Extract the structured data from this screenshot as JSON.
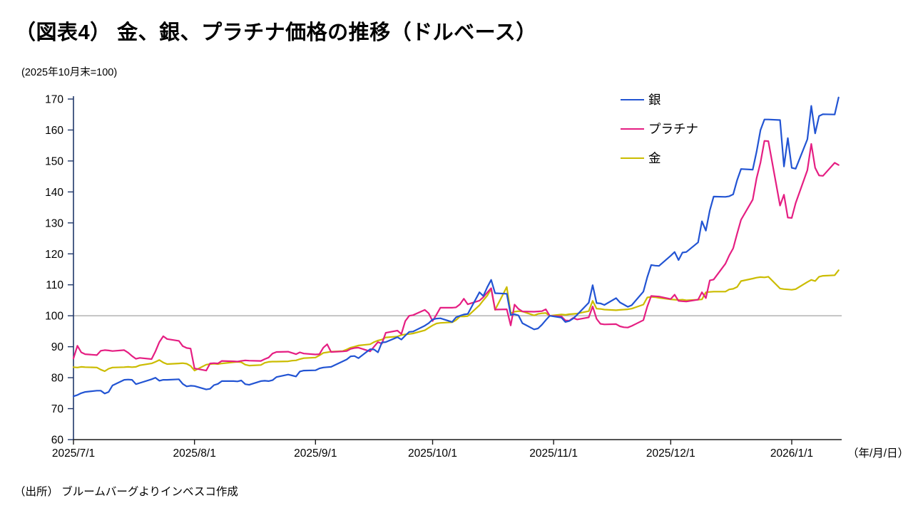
{
  "page": {
    "title": "（図表4） 金、銀、プラチナ価格の推移（ドルベース）",
    "index_note": "(2025年10月末=100)",
    "axis_unit": "（年/月/日）",
    "source": "（出所） ブルームバーグよりインベスコ作成"
  },
  "chart_data": {
    "type": "line",
    "title": "（図表4） 金、銀、プラチナ価格の推移（ドルベース）",
    "subtitle": "(2025年10月末=100)",
    "xlabel": "（年/月/日）",
    "ylabel": "",
    "ylim": [
      60,
      170
    ],
    "yticks": [
      60,
      70,
      80,
      90,
      100,
      110,
      120,
      130,
      140,
      150,
      160,
      170
    ],
    "baseline": 100,
    "grid": "baseline-only",
    "legend_position": "top-right",
    "month_ticks": [
      "2025/7/1",
      "2025/8/1",
      "2025/9/1",
      "2025/10/1",
      "2025/11/1",
      "2025/12/1",
      "2026/1/1"
    ],
    "x_dates": [
      "2025/7/1",
      "2025/7/2",
      "2025/7/3",
      "2025/7/4",
      "2025/7/7",
      "2025/7/8",
      "2025/7/9",
      "2025/7/10",
      "2025/7/11",
      "2025/7/14",
      "2025/7/15",
      "2025/7/16",
      "2025/7/17",
      "2025/7/18",
      "2025/7/21",
      "2025/7/22",
      "2025/7/23",
      "2025/7/24",
      "2025/7/25",
      "2025/7/28",
      "2025/7/29",
      "2025/7/30",
      "2025/7/31",
      "2025/8/1",
      "2025/8/4",
      "2025/8/5",
      "2025/8/6",
      "2025/8/7",
      "2025/8/8",
      "2025/8/11",
      "2025/8/12",
      "2025/8/13",
      "2025/8/14",
      "2025/8/15",
      "2025/8/18",
      "2025/8/19",
      "2025/8/20",
      "2025/8/21",
      "2025/8/22",
      "2025/8/25",
      "2025/8/26",
      "2025/8/27",
      "2025/8/28",
      "2025/8/29",
      "2025/9/1",
      "2025/9/2",
      "2025/9/3",
      "2025/9/4",
      "2025/9/5",
      "2025/9/8",
      "2025/9/9",
      "2025/9/10",
      "2025/9/11",
      "2025/9/12",
      "2025/9/15",
      "2025/9/16",
      "2025/9/17",
      "2025/9/18",
      "2025/9/19",
      "2025/9/22",
      "2025/9/23",
      "2025/9/24",
      "2025/9/25",
      "2025/9/26",
      "2025/9/29",
      "2025/9/30",
      "2025/10/1",
      "2025/10/2",
      "2025/10/3",
      "2025/10/6",
      "2025/10/7",
      "2025/10/8",
      "2025/10/9",
      "2025/10/10",
      "2025/10/13",
      "2025/10/14",
      "2025/10/15",
      "2025/10/16",
      "2025/10/17",
      "2025/10/20",
      "2025/10/21",
      "2025/10/22",
      "2025/10/23",
      "2025/10/24",
      "2025/10/27",
      "2025/10/28",
      "2025/10/29",
      "2025/10/30",
      "2025/10/31",
      "2025/11/3",
      "2025/11/4",
      "2025/11/5",
      "2025/11/6",
      "2025/11/7",
      "2025/11/10",
      "2025/11/11",
      "2025/11/12",
      "2025/11/13",
      "2025/11/14",
      "2025/11/17",
      "2025/11/18",
      "2025/11/19",
      "2025/11/20",
      "2025/11/21",
      "2025/11/24",
      "2025/11/25",
      "2025/11/26",
      "2025/11/27",
      "2025/11/28",
      "2025/12/1",
      "2025/12/2",
      "2025/12/3",
      "2025/12/4",
      "2025/12/5",
      "2025/12/8",
      "2025/12/9",
      "2025/12/10",
      "2025/12/11",
      "2025/12/12",
      "2025/12/15",
      "2025/12/16",
      "2025/12/17",
      "2025/12/18",
      "2025/12/19",
      "2025/12/22",
      "2025/12/23",
      "2025/12/24",
      "2025/12/25",
      "2025/12/26",
      "2025/12/29",
      "2025/12/30",
      "2025/12/31",
      "2026/1/1",
      "2026/1/2",
      "2026/1/5",
      "2026/1/6",
      "2026/1/7",
      "2026/1/8",
      "2026/1/9",
      "2026/1/12",
      "2026/1/13"
    ],
    "series": [
      {
        "key": "silver",
        "name": "銀",
        "color": "#2254d3",
        "values": [
          74.0,
          74.4,
          75.0,
          75.4,
          75.8,
          75.8,
          74.9,
          75.4,
          77.5,
          79.3,
          79.4,
          79.3,
          77.9,
          78.3,
          79.5,
          80.0,
          79.0,
          79.3,
          79.3,
          79.5,
          78.0,
          77.2,
          77.4,
          77.3,
          76.2,
          76.4,
          77.6,
          78.0,
          78.9,
          78.9,
          78.8,
          79.1,
          77.9,
          77.7,
          78.9,
          79.0,
          78.9,
          79.2,
          80.2,
          81.0,
          80.7,
          80.4,
          82.0,
          82.3,
          82.4,
          83.0,
          83.3,
          83.4,
          83.5,
          85.3,
          85.9,
          86.9,
          87.0,
          86.3,
          89.2,
          89.1,
          88.2,
          91.4,
          91.5,
          93.1,
          92.3,
          93.6,
          94.8,
          94.9,
          96.8,
          97.6,
          98.8,
          99.1,
          99.2,
          98.0,
          99.5,
          100.0,
          100.4,
          100.6,
          107.6,
          106.4,
          109.2,
          111.6,
          107.3,
          107.1,
          100.3,
          100.5,
          100.1,
          97.6,
          95.6,
          95.9,
          97.1,
          98.6,
          100.0,
          99.4,
          98.0,
          98.3,
          99.1,
          100.3,
          104.2,
          109.9,
          104.1,
          104.0,
          103.5,
          105.7,
          104.3,
          103.6,
          102.9,
          103.4,
          107.8,
          112.5,
          116.4,
          116.2,
          116.1,
          119.4,
          120.6,
          118.0,
          120.4,
          120.6,
          123.7,
          130.5,
          127.5,
          134.0,
          138.5,
          138.4,
          138.6,
          139.2,
          143.8,
          147.4,
          147.2,
          153.0,
          160.0,
          163.4,
          163.4,
          163.2,
          148.2,
          157.4,
          147.8,
          147.5,
          157.0,
          167.8,
          158.9,
          164.5,
          165.1,
          165.0,
          170.5
        ]
      },
      {
        "key": "platinum",
        "name": "プラチナ",
        "color": "#e51e82",
        "values": [
          86.2,
          90.3,
          88.2,
          87.6,
          87.3,
          88.7,
          88.9,
          88.8,
          88.6,
          88.9,
          88.1,
          87.0,
          86.1,
          86.4,
          86.0,
          88.5,
          91.5,
          93.4,
          92.5,
          91.9,
          90.2,
          89.6,
          89.4,
          83.0,
          82.3,
          84.6,
          84.7,
          84.6,
          85.4,
          85.3,
          85.2,
          85.4,
          85.6,
          85.5,
          85.4,
          86.0,
          86.5,
          87.8,
          88.3,
          88.4,
          88.0,
          87.6,
          88.2,
          87.8,
          87.5,
          87.6,
          89.7,
          90.8,
          88.3,
          88.5,
          88.6,
          89.3,
          89.6,
          89.7,
          88.5,
          90.0,
          91.5,
          91.0,
          94.5,
          95.2,
          94.1,
          98.3,
          100.0,
          100.2,
          101.9,
          100.8,
          98.3,
          100.4,
          102.6,
          102.6,
          102.7,
          103.7,
          105.5,
          103.7,
          104.9,
          106.0,
          107.5,
          108.9,
          102.0,
          102.1,
          96.9,
          103.6,
          102.2,
          101.4,
          101.3,
          101.4,
          101.5,
          102.1,
          100.0,
          99.8,
          98.5,
          98.4,
          99.3,
          98.8,
          99.5,
          103.0,
          99.0,
          97.4,
          97.2,
          97.3,
          96.6,
          96.3,
          96.2,
          96.7,
          98.6,
          103.0,
          106.4,
          106.3,
          106.2,
          105.4,
          106.8,
          104.8,
          104.7,
          104.6,
          105.2,
          107.6,
          105.7,
          111.4,
          111.7,
          116.8,
          119.5,
          121.8,
          126.5,
          131.0,
          137.5,
          144.4,
          149.5,
          156.5,
          156.4,
          135.6,
          139.1,
          131.7,
          131.6,
          136.4,
          147.0,
          155.5,
          147.8,
          145.3,
          145.2,
          149.4,
          148.7
        ]
      },
      {
        "key": "gold",
        "name": "金",
        "color": "#cbbc00",
        "values": [
          83.4,
          83.3,
          83.5,
          83.4,
          83.3,
          82.6,
          82.1,
          82.9,
          83.3,
          83.4,
          83.5,
          83.4,
          83.5,
          84.0,
          84.6,
          85.1,
          85.7,
          84.9,
          84.4,
          84.6,
          84.7,
          84.5,
          83.8,
          82.3,
          84.2,
          84.4,
          84.5,
          84.4,
          84.6,
          85.0,
          85.1,
          85.0,
          84.2,
          83.9,
          84.1,
          84.8,
          85.1,
          85.2,
          85.2,
          85.3,
          85.5,
          85.6,
          86.0,
          86.3,
          86.5,
          87.2,
          88.0,
          88.2,
          88.4,
          88.6,
          89.1,
          89.7,
          90.0,
          90.4,
          90.8,
          91.5,
          92.0,
          92.3,
          93.0,
          93.3,
          93.8,
          94.0,
          94.1,
          94.3,
          95.3,
          96.1,
          96.9,
          97.5,
          97.7,
          97.9,
          98.6,
          99.8,
          99.8,
          99.9,
          103.4,
          105.0,
          106.5,
          108.7,
          101.9,
          109.3,
          100.8,
          101.3,
          101.5,
          101.4,
          100.1,
          100.6,
          100.8,
          100.9,
          100.0,
          100.4,
          100.3,
          100.5,
          100.6,
          100.7,
          101.5,
          104.8,
          102.3,
          102.2,
          102.0,
          101.8,
          101.9,
          102.0,
          102.1,
          102.3,
          103.6,
          105.9,
          106.1,
          106.0,
          105.8,
          105.3,
          105.2,
          105.1,
          105.2,
          105.0,
          105.2,
          105.3,
          107.6,
          107.7,
          107.8,
          107.8,
          108.5,
          108.7,
          109.3,
          111.2,
          112.0,
          112.3,
          112.5,
          112.4,
          112.6,
          108.8,
          108.6,
          108.5,
          108.4,
          108.6,
          110.9,
          111.6,
          111.2,
          112.6,
          112.9,
          113.1,
          114.7
        ]
      }
    ]
  }
}
